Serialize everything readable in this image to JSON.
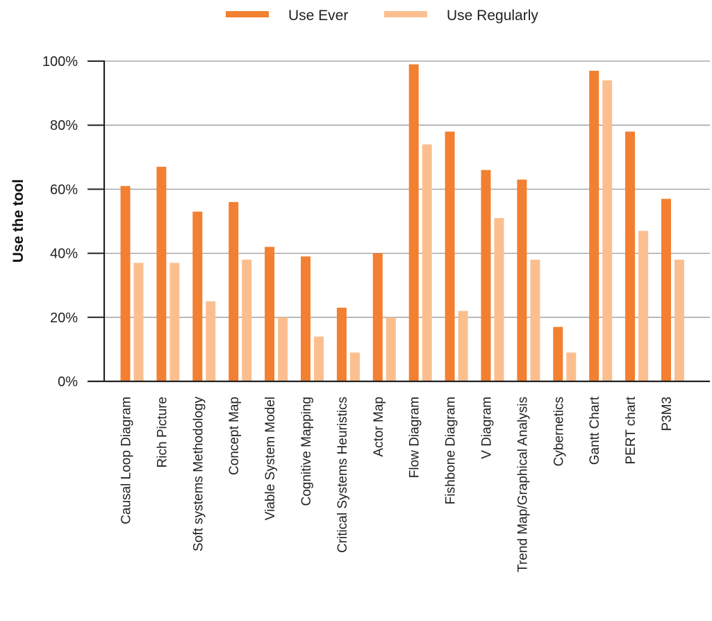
{
  "chart_data": {
    "type": "bar",
    "title": "",
    "xlabel": "",
    "ylabel": "Use the tool",
    "ylim": [
      0,
      100
    ],
    "yticks": [
      "0%",
      "20%",
      "40%",
      "60%",
      "80%",
      "100%"
    ],
    "grid": true,
    "legend_position": "top-center",
    "categories": [
      "Causal Loop Diagram",
      "Rich Picture",
      "Soft systems Methodology",
      "Concept Map",
      "Viable System Model",
      "Cognitive Mapping",
      "Critical Systems Heuristics",
      "Actor Map",
      "Flow Diagram",
      "Fishbone Diagram",
      "V Diagram",
      "Trend Map/Graphical Analysis",
      "Cybernetics",
      "Gantt Chart",
      "PERT chart",
      "P3M3"
    ],
    "series": [
      {
        "name": "Use Ever",
        "color": "#f37f31",
        "values": [
          61,
          67,
          53,
          56,
          42,
          39,
          23,
          40,
          99,
          78,
          66,
          63,
          17,
          97,
          78,
          57
        ]
      },
      {
        "name": "Use Regularly",
        "color": "#fbbf8f",
        "values": [
          37,
          37,
          25,
          38,
          20,
          14,
          9,
          20,
          74,
          22,
          51,
          38,
          9,
          94,
          47,
          38
        ]
      }
    ]
  }
}
